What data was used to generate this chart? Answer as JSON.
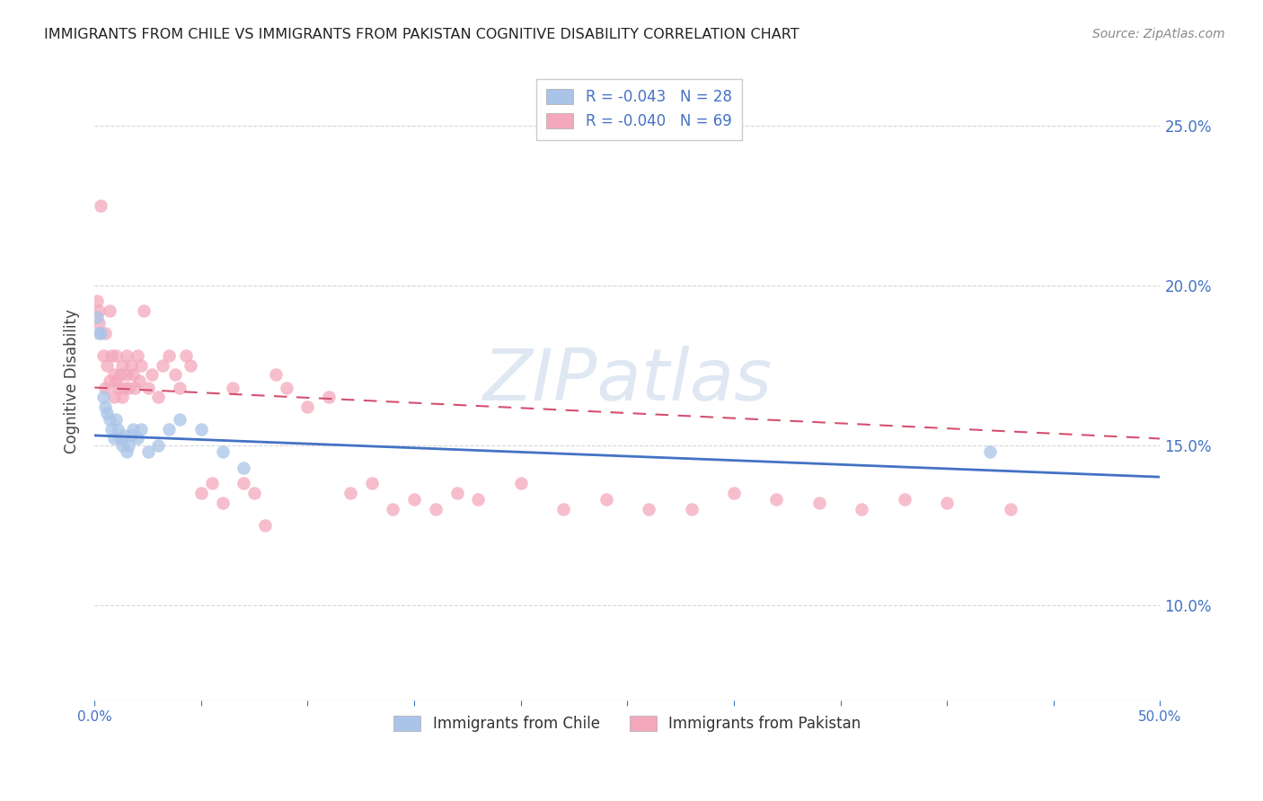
{
  "title": "IMMIGRANTS FROM CHILE VS IMMIGRANTS FROM PAKISTAN COGNITIVE DISABILITY CORRELATION CHART",
  "source": "Source: ZipAtlas.com",
  "ylabel": "Cognitive Disability",
  "watermark": "ZIPatlas",
  "xlim": [
    0.0,
    0.5
  ],
  "ylim": [
    0.07,
    0.27
  ],
  "xticks": [
    0.0,
    0.05,
    0.1,
    0.15,
    0.2,
    0.25,
    0.3,
    0.35,
    0.4,
    0.45,
    0.5
  ],
  "xtick_labels_show": [
    "0.0%",
    "",
    "",
    "",
    "",
    "",
    "",
    "",
    "",
    "",
    "50.0%"
  ],
  "yticks_right": [
    0.1,
    0.15,
    0.2,
    0.25
  ],
  "ytick_labels_right": [
    "10.0%",
    "15.0%",
    "20.0%",
    "25.0%"
  ],
  "ytick_color": "#4472c4",
  "xtick_color": "#4472c4",
  "legend_bottom": [
    {
      "label": "Immigrants from Chile",
      "color": "#aac4e8"
    },
    {
      "label": "Immigrants from Pakistan",
      "color": "#f4a8bc"
    }
  ],
  "chile_color": "#aac4e8",
  "pakistan_color": "#f4a8bc",
  "chile_line_color": "#4472c4",
  "pakistan_line_color": "#d45070",
  "background_color": "#ffffff",
  "grid_color": "#cccccc",
  "chile_R": -0.043,
  "pakistan_R": -0.04,
  "chile_N": 28,
  "pakistan_N": 69,
  "chile_trend_x0": 0.0,
  "chile_trend_x1": 0.5,
  "chile_trend_y0": 0.153,
  "chile_trend_y1": 0.14,
  "pak_trend_x0": 0.0,
  "pak_trend_x1": 0.5,
  "pak_trend_y0": 0.168,
  "pak_trend_y1": 0.152,
  "chile_points_x": [
    0.001,
    0.002,
    0.003,
    0.004,
    0.005,
    0.006,
    0.007,
    0.008,
    0.009,
    0.01,
    0.011,
    0.012,
    0.013,
    0.014,
    0.015,
    0.016,
    0.017,
    0.018,
    0.02,
    0.022,
    0.025,
    0.03,
    0.035,
    0.04,
    0.05,
    0.06,
    0.07,
    0.42
  ],
  "chile_points_y": [
    0.19,
    0.185,
    0.185,
    0.165,
    0.162,
    0.16,
    0.158,
    0.155,
    0.152,
    0.158,
    0.155,
    0.152,
    0.15,
    0.153,
    0.148,
    0.15,
    0.153,
    0.155,
    0.152,
    0.155,
    0.148,
    0.15,
    0.155,
    0.158,
    0.155,
    0.148,
    0.143,
    0.148
  ],
  "pakistan_points_x": [
    0.001,
    0.002,
    0.002,
    0.003,
    0.004,
    0.005,
    0.005,
    0.006,
    0.007,
    0.007,
    0.008,
    0.009,
    0.009,
    0.01,
    0.01,
    0.011,
    0.012,
    0.013,
    0.013,
    0.014,
    0.015,
    0.015,
    0.016,
    0.017,
    0.018,
    0.019,
    0.02,
    0.021,
    0.022,
    0.023,
    0.025,
    0.027,
    0.03,
    0.032,
    0.035,
    0.038,
    0.04,
    0.043,
    0.045,
    0.05,
    0.055,
    0.06,
    0.065,
    0.07,
    0.075,
    0.08,
    0.085,
    0.09,
    0.1,
    0.11,
    0.12,
    0.13,
    0.14,
    0.15,
    0.16,
    0.17,
    0.18,
    0.2,
    0.22,
    0.24,
    0.26,
    0.28,
    0.3,
    0.32,
    0.34,
    0.36,
    0.38,
    0.4,
    0.43
  ],
  "pakistan_points_y": [
    0.195,
    0.192,
    0.188,
    0.225,
    0.178,
    0.185,
    0.168,
    0.175,
    0.17,
    0.192,
    0.178,
    0.165,
    0.172,
    0.17,
    0.178,
    0.168,
    0.172,
    0.165,
    0.175,
    0.168,
    0.172,
    0.178,
    0.168,
    0.175,
    0.172,
    0.168,
    0.178,
    0.17,
    0.175,
    0.192,
    0.168,
    0.172,
    0.165,
    0.175,
    0.178,
    0.172,
    0.168,
    0.178,
    0.175,
    0.135,
    0.138,
    0.132,
    0.168,
    0.138,
    0.135,
    0.125,
    0.172,
    0.168,
    0.162,
    0.165,
    0.135,
    0.138,
    0.13,
    0.133,
    0.13,
    0.135,
    0.133,
    0.138,
    0.13,
    0.133,
    0.13,
    0.13,
    0.135,
    0.133,
    0.132,
    0.13,
    0.133,
    0.132,
    0.13
  ]
}
